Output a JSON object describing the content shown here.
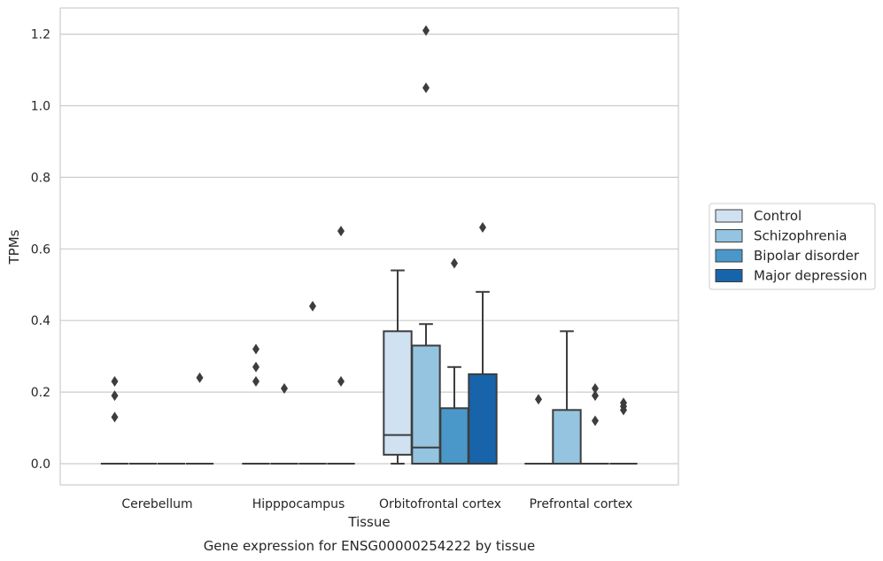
{
  "chart_data": {
    "type": "boxplot",
    "title": "",
    "caption": "Gene expression for ENSG00000254222 by tissue",
    "xlabel": "Tissue",
    "ylabel": "TPMs",
    "ylim": [
      -0.06,
      1.27
    ],
    "yticks": [
      0.0,
      0.2,
      0.4,
      0.6,
      0.8,
      1.0,
      1.2
    ],
    "ytick_labels": [
      "0.0",
      "0.2",
      "0.4",
      "0.6",
      "0.8",
      "1.0",
      "1.2"
    ],
    "grid": "horizontal",
    "legend_position": "right",
    "categories": [
      "Cerebellum",
      "Hipppocampus",
      "Orbitofrontal cortex",
      "Prefrontal cortex"
    ],
    "series": [
      {
        "name": "Control",
        "color": "#d0e1f2",
        "boxes": [
          {
            "q1": 0,
            "median": 0,
            "q3": 0,
            "whislo": 0,
            "whishi": 0,
            "fliers": [
              0.13,
              0.19,
              0.23
            ]
          },
          {
            "q1": 0,
            "median": 0,
            "q3": 0,
            "whislo": 0,
            "whishi": 0,
            "fliers": [
              0.23,
              0.27,
              0.32
            ]
          },
          {
            "q1": 0.025,
            "median": 0.08,
            "q3": 0.37,
            "whislo": 0,
            "whishi": 0.54,
            "fliers": []
          },
          {
            "q1": 0,
            "median": 0,
            "q3": 0,
            "whislo": 0,
            "whishi": 0,
            "fliers": [
              0.18
            ]
          }
        ]
      },
      {
        "name": "Schizophrenia",
        "color": "#94c4df",
        "boxes": [
          {
            "q1": 0,
            "median": 0,
            "q3": 0,
            "whislo": 0,
            "whishi": 0,
            "fliers": []
          },
          {
            "q1": 0,
            "median": 0,
            "q3": 0,
            "whislo": 0,
            "whishi": 0,
            "fliers": [
              0.21
            ]
          },
          {
            "q1": 0,
            "median": 0.045,
            "q3": 0.33,
            "whislo": 0,
            "whishi": 0.39,
            "fliers": [
              1.05,
              1.21
            ]
          },
          {
            "q1": 0,
            "median": 0,
            "q3": 0.15,
            "whislo": 0,
            "whishi": 0.37,
            "fliers": []
          }
        ]
      },
      {
        "name": "Bipolar disorder",
        "color": "#4a98c9",
        "boxes": [
          {
            "q1": 0,
            "median": 0,
            "q3": 0,
            "whislo": 0,
            "whishi": 0,
            "fliers": []
          },
          {
            "q1": 0,
            "median": 0,
            "q3": 0,
            "whislo": 0,
            "whishi": 0,
            "fliers": [
              0.44
            ]
          },
          {
            "q1": 0,
            "median": 0,
            "q3": 0.155,
            "whislo": 0,
            "whishi": 0.27,
            "fliers": [
              0.56
            ]
          },
          {
            "q1": 0,
            "median": 0,
            "q3": 0,
            "whislo": 0,
            "whishi": 0,
            "fliers": [
              0.12,
              0.19,
              0.21
            ]
          }
        ]
      },
      {
        "name": "Major depression",
        "color": "#1764ab",
        "boxes": [
          {
            "q1": 0,
            "median": 0,
            "q3": 0,
            "whislo": 0,
            "whishi": 0,
            "fliers": [
              0.24
            ]
          },
          {
            "q1": 0,
            "median": 0,
            "q3": 0,
            "whislo": 0,
            "whishi": 0,
            "fliers": [
              0.23,
              0.65
            ]
          },
          {
            "q1": 0,
            "median": 0,
            "q3": 0.25,
            "whislo": 0,
            "whishi": 0.48,
            "fliers": [
              0.66
            ]
          },
          {
            "q1": 0,
            "median": 0,
            "q3": 0,
            "whislo": 0,
            "whishi": 0,
            "fliers": [
              0.15,
              0.16,
              0.17
            ]
          }
        ]
      }
    ]
  }
}
